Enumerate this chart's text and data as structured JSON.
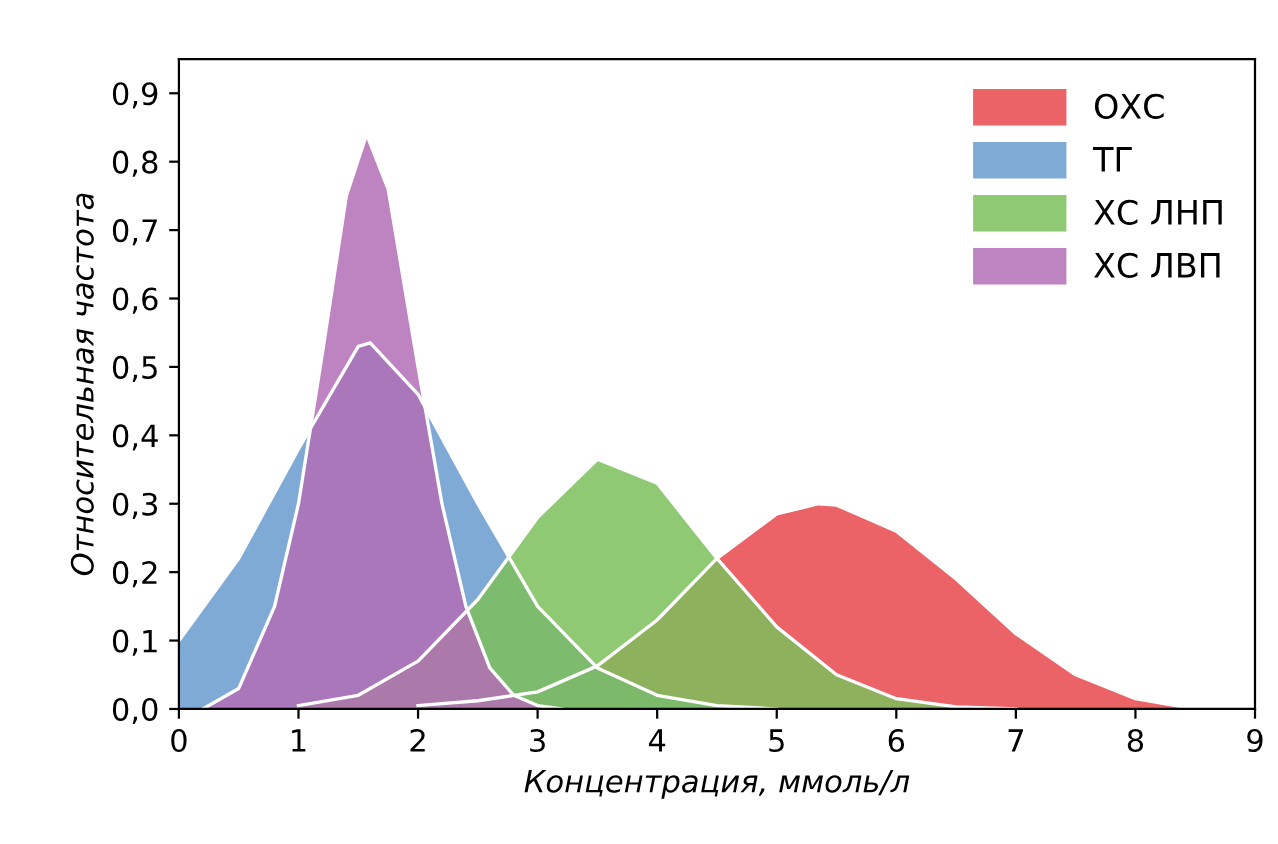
{
  "chart_data": {
    "type": "area",
    "xlabel": "Концентрация, ммоль/л",
    "ylabel": "Относительная частота",
    "xlim": [
      0,
      9
    ],
    "ylim": [
      0,
      0.95
    ],
    "xticks": [
      0,
      1,
      2,
      3,
      4,
      5,
      6,
      7,
      8,
      9
    ],
    "yticks": [
      {
        "value": 0,
        "label": "0,0"
      },
      {
        "value": 0.1,
        "label": "0,1"
      },
      {
        "value": 0.2,
        "label": "0,2"
      },
      {
        "value": 0.3,
        "label": "0,3"
      },
      {
        "value": 0.4,
        "label": "0,4"
      },
      {
        "value": 0.5,
        "label": "0,5"
      },
      {
        "value": 0.6,
        "label": "0,6"
      },
      {
        "value": 0.7,
        "label": "0,7"
      },
      {
        "value": 0.8,
        "label": "0,8"
      },
      {
        "value": 0.9,
        "label": "0,9"
      }
    ],
    "legend": "top right",
    "grid": false,
    "series": [
      {
        "name": "ОХС",
        "color": "#e8474c",
        "x": [
          2,
          2.5,
          3,
          3.5,
          4,
          4.5,
          5,
          5.35,
          5.5,
          6,
          6.5,
          7,
          7.5,
          8,
          8.5
        ],
        "values": [
          0.005,
          0.012,
          0.025,
          0.063,
          0.13,
          0.22,
          0.285,
          0.3,
          0.298,
          0.26,
          0.19,
          0.11,
          0.05,
          0.015,
          0
        ]
      },
      {
        "name": "ТГ",
        "color": "#6a9bcf",
        "x": [
          0,
          0.5,
          1,
          1.5,
          1.6,
          2,
          2.5,
          3,
          3.5,
          4,
          4.5,
          5
        ],
        "values": [
          0.1,
          0.22,
          0.38,
          0.53,
          0.535,
          0.46,
          0.3,
          0.15,
          0.06,
          0.02,
          0.005,
          0
        ]
      },
      {
        "name": "ХС ЛНП",
        "color": "#7cbf5c",
        "x": [
          1,
          1.5,
          2,
          2.5,
          3,
          3.5,
          4,
          4.5,
          5,
          5.5,
          6,
          6.5,
          7
        ],
        "values": [
          0.005,
          0.02,
          0.07,
          0.16,
          0.28,
          0.365,
          0.33,
          0.22,
          0.12,
          0.05,
          0.015,
          0.003,
          0
        ]
      },
      {
        "name": "ХС ЛВП",
        "color": "#b36fb6",
        "x": [
          0.2,
          0.5,
          0.8,
          1,
          1.2,
          1.4,
          1.57,
          1.75,
          2,
          2.2,
          2.4,
          2.6,
          2.8,
          3,
          3.2
        ],
        "values": [
          0,
          0.03,
          0.15,
          0.3,
          0.52,
          0.75,
          0.84,
          0.76,
          0.5,
          0.3,
          0.15,
          0.06,
          0.02,
          0.005,
          0
        ]
      }
    ]
  }
}
